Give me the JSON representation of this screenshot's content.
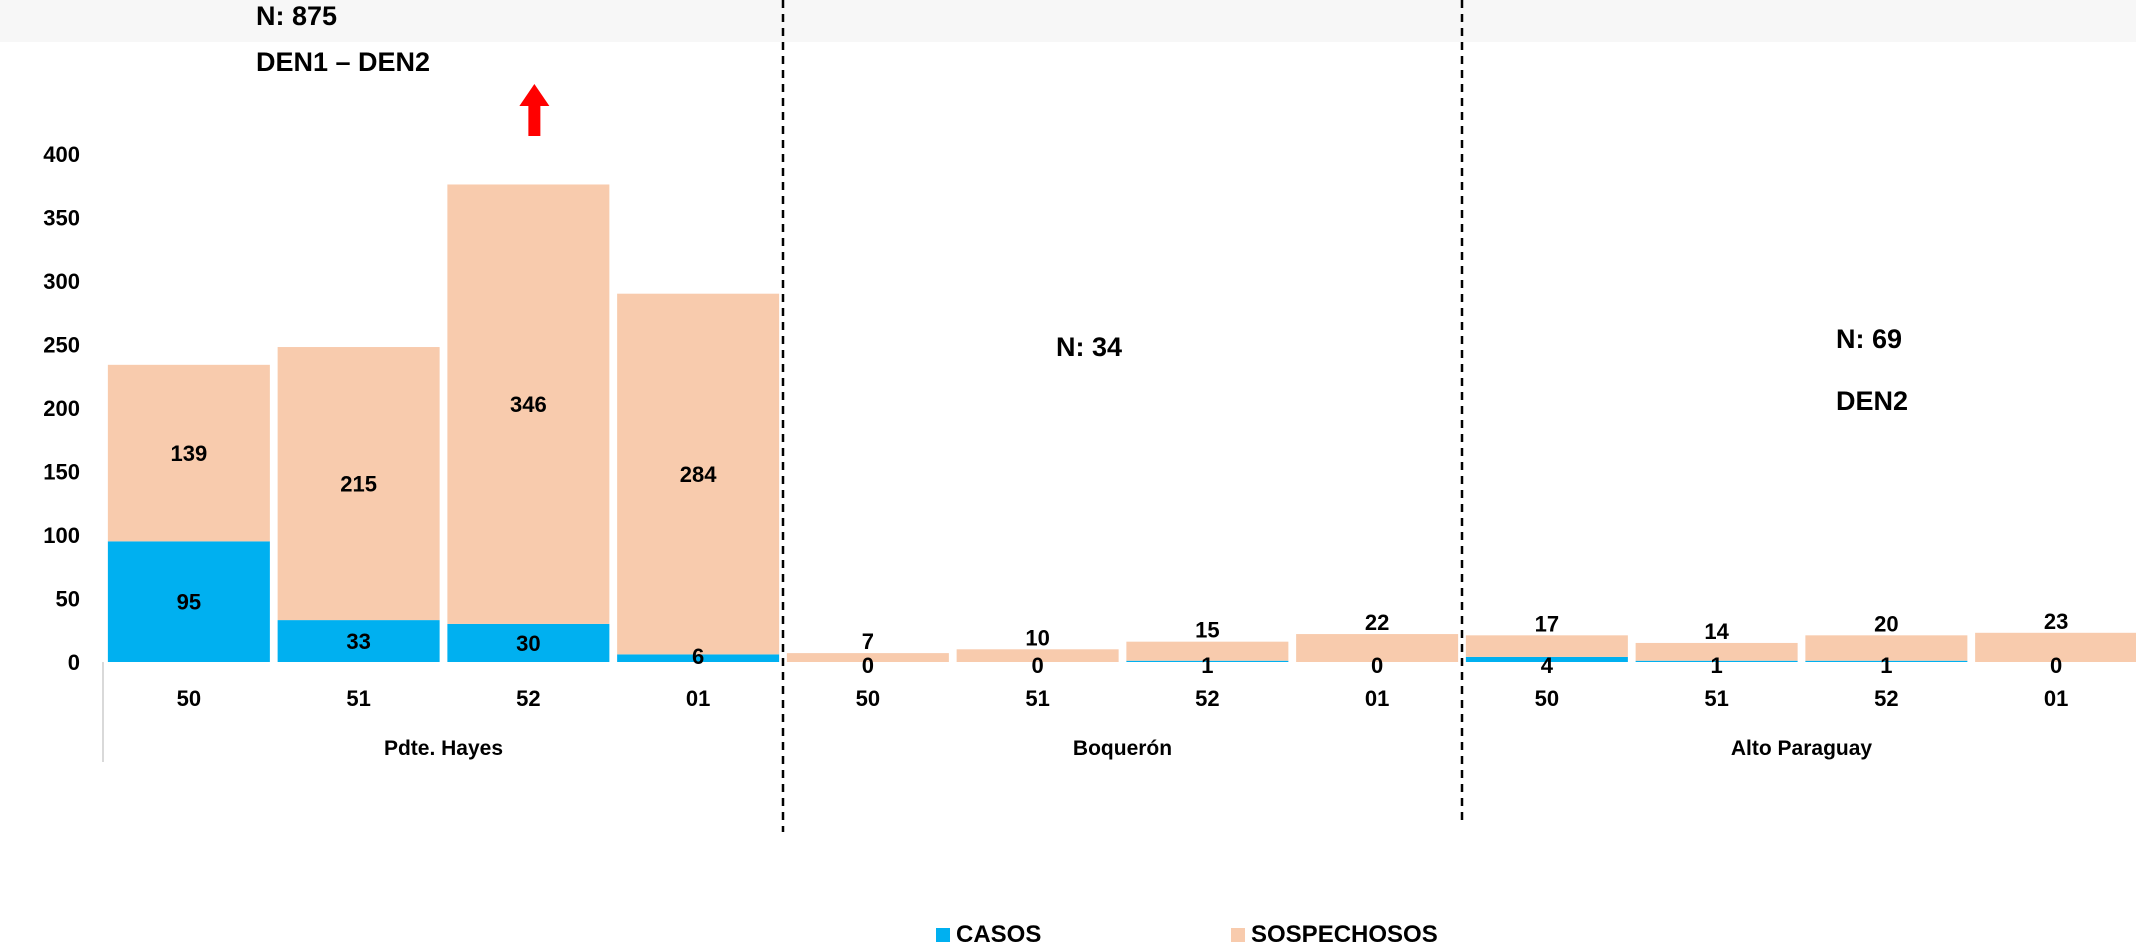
{
  "annotations": {
    "n_total": "N: 875",
    "serotypes_all": "DEN1 – DEN2",
    "n_boqueron": "N: 34",
    "n_alto": "N: 69",
    "serotype_alto": "DEN2"
  },
  "legend": {
    "casos": "CASOS",
    "sospechosos": "SOSPECHOSOS"
  },
  "chart_data": {
    "type": "bar",
    "stacked": true,
    "ylim": [
      0,
      400
    ],
    "yticks": [
      0,
      50,
      100,
      150,
      200,
      250,
      300,
      350,
      400
    ],
    "grid": false,
    "legend_position": "bottom",
    "groups": [
      "Pdte. Hayes",
      "Boquerón",
      "Alto Paraguay"
    ],
    "categories": [
      "50",
      "51",
      "52",
      "01"
    ],
    "series": [
      {
        "name": "CASOS",
        "color": "#00b0f0",
        "values": [
          [
            95,
            33,
            30,
            6
          ],
          [
            0,
            0,
            1,
            0
          ],
          [
            4,
            1,
            1,
            0
          ]
        ]
      },
      {
        "name": "SOSPECHOSOS",
        "color": "#f8cbad",
        "values": [
          [
            139,
            215,
            346,
            284
          ],
          [
            7,
            10,
            15,
            22
          ],
          [
            17,
            14,
            20,
            23
          ]
        ]
      }
    ],
    "highlight": {
      "group": 0,
      "category": 2,
      "marker": "arrow-up",
      "color": "#ff0000"
    }
  }
}
